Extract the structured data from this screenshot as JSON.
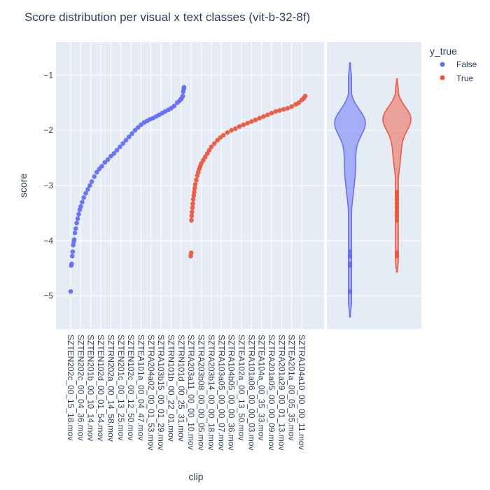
{
  "chart_data": [
    {
      "type": "scatter",
      "title": "Score distribution per visual x text classes (vit-b-32-8f)",
      "xlabel": "clip",
      "ylabel": "score",
      "ylim": [
        -5.6,
        -0.4
      ],
      "yticks": [
        -1,
        -2,
        -3,
        -4,
        -5
      ],
      "ytick_labels": [
        "−1",
        "−2",
        "−3",
        "−4",
        "−5"
      ],
      "x_categories": [
        "SZTEN202c_00_15_18.mov",
        "SZTEN202c_00_04_36.mov",
        "SZTEN201b_00_10_14.mov",
        "SZTEN102d_00_01_54.mov",
        "SZTRN202a_00_14_58.mov",
        "SZTEN201c_00_13_25.mov",
        "SZTEN102c_00_12_50.mov",
        "SZTEA101a_00_04_47.mov",
        "SZTRA204a02_00_01_53.mov",
        "SZTRA103b15_00_01_29.mov",
        "SZTRN101b_00_22_01.mov",
        "SZTRN101d_00_25_31.mov",
        "SZTRA203a11_00_00_10.mov",
        "SZTRA203b08_00_00_05.mov",
        "SZTRA203b14_00_00_18.mov",
        "SZTRA103a05_00_00_07.mov",
        "SZTRA104b05_00_00_36.mov",
        "SZTEA102a_00_13_50.mov",
        "SZTRA101a06_00_00_03.mov",
        "SZTEA104a_00_35_33.mov",
        "SZTRA201a05_00_00_09.mov",
        "SZTRA201a29_00_01_13.mov",
        "SZTEA201a_00_05_35.mov",
        "SZTRA104a10_00_00_11.mov"
      ],
      "grid": true,
      "legend": {
        "title": "y_true",
        "position": "top-right",
        "entries": [
          {
            "label": "False",
            "color": "#636efa"
          },
          {
            "label": "True",
            "color": "#ef553b"
          }
        ]
      },
      "series": [
        {
          "name": "False",
          "color": "#636efa",
          "category_range": [
            0,
            11
          ],
          "points": [
            [
              0.0,
              -4.92
            ],
            [
              0.05,
              -4.45
            ],
            [
              0.1,
              -4.42
            ],
            [
              0.15,
              -4.28
            ],
            [
              0.2,
              -4.2
            ],
            [
              0.25,
              -4.08
            ],
            [
              0.3,
              -4.02
            ],
            [
              0.35,
              -3.98
            ],
            [
              0.42,
              -3.86
            ],
            [
              0.5,
              -3.78
            ],
            [
              0.6,
              -3.68
            ],
            [
              0.7,
              -3.6
            ],
            [
              0.8,
              -3.52
            ],
            [
              0.9,
              -3.44
            ],
            [
              1.0,
              -3.38
            ],
            [
              1.15,
              -3.3
            ],
            [
              1.3,
              -3.22
            ],
            [
              1.5,
              -3.14
            ],
            [
              1.7,
              -3.07
            ],
            [
              1.9,
              -3.0
            ],
            [
              2.1,
              -2.93
            ],
            [
              2.35,
              -2.84
            ],
            [
              2.6,
              -2.76
            ],
            [
              2.85,
              -2.7
            ],
            [
              3.1,
              -2.65
            ],
            [
              3.4,
              -2.58
            ],
            [
              3.7,
              -2.53
            ],
            [
              4.0,
              -2.47
            ],
            [
              4.3,
              -2.42
            ],
            [
              4.6,
              -2.36
            ],
            [
              4.9,
              -2.3
            ],
            [
              5.2,
              -2.24
            ],
            [
              5.5,
              -2.18
            ],
            [
              5.8,
              -2.12
            ],
            [
              6.1,
              -2.06
            ],
            [
              6.4,
              -2.0
            ],
            [
              6.7,
              -1.95
            ],
            [
              7.0,
              -1.9
            ],
            [
              7.3,
              -1.86
            ],
            [
              7.6,
              -1.83
            ],
            [
              7.9,
              -1.8
            ],
            [
              8.2,
              -1.78
            ],
            [
              8.5,
              -1.75
            ],
            [
              8.8,
              -1.72
            ],
            [
              9.1,
              -1.69
            ],
            [
              9.4,
              -1.66
            ],
            [
              9.7,
              -1.63
            ],
            [
              10.0,
              -1.6
            ],
            [
              10.3,
              -1.56
            ],
            [
              10.6,
              -1.5
            ],
            [
              10.8,
              -1.47
            ],
            [
              10.95,
              -1.44
            ],
            [
              11.05,
              -1.42
            ],
            [
              11.15,
              -1.38
            ],
            [
              11.2,
              -1.3
            ],
            [
              11.25,
              -1.25
            ],
            [
              11.28,
              -1.22
            ]
          ]
        },
        {
          "name": "True",
          "color": "#ef553b",
          "category_range": [
            12,
            23
          ],
          "points": [
            [
              11.95,
              -4.28
            ],
            [
              12.0,
              -4.22
            ],
            [
              12.02,
              -3.63
            ],
            [
              12.05,
              -3.55
            ],
            [
              12.08,
              -3.48
            ],
            [
              12.12,
              -3.4
            ],
            [
              12.16,
              -3.33
            ],
            [
              12.2,
              -3.25
            ],
            [
              12.25,
              -3.18
            ],
            [
              12.3,
              -3.12
            ],
            [
              12.35,
              -3.05
            ],
            [
              12.4,
              -2.98
            ],
            [
              12.5,
              -2.9
            ],
            [
              12.6,
              -2.82
            ],
            [
              12.7,
              -2.76
            ],
            [
              12.8,
              -2.7
            ],
            [
              12.9,
              -2.65
            ],
            [
              13.0,
              -2.6
            ],
            [
              13.2,
              -2.54
            ],
            [
              13.4,
              -2.48
            ],
            [
              13.6,
              -2.42
            ],
            [
              13.8,
              -2.36
            ],
            [
              14.0,
              -2.3
            ],
            [
              14.3,
              -2.24
            ],
            [
              14.6,
              -2.18
            ],
            [
              14.9,
              -2.13
            ],
            [
              15.2,
              -2.09
            ],
            [
              15.6,
              -2.04
            ],
            [
              16.0,
              -2.0
            ],
            [
              16.4,
              -1.97
            ],
            [
              16.8,
              -1.93
            ],
            [
              17.2,
              -1.9
            ],
            [
              17.6,
              -1.87
            ],
            [
              18.0,
              -1.84
            ],
            [
              18.4,
              -1.81
            ],
            [
              18.8,
              -1.78
            ],
            [
              19.2,
              -1.75
            ],
            [
              19.6,
              -1.72
            ],
            [
              20.0,
              -1.69
            ],
            [
              20.4,
              -1.66
            ],
            [
              20.8,
              -1.64
            ],
            [
              21.2,
              -1.62
            ],
            [
              21.6,
              -1.6
            ],
            [
              22.0,
              -1.57
            ],
            [
              22.4,
              -1.53
            ],
            [
              22.7,
              -1.5
            ],
            [
              23.0,
              -1.45
            ],
            [
              23.2,
              -1.42
            ],
            [
              23.35,
              -1.38
            ]
          ]
        }
      ]
    },
    {
      "type": "violin",
      "ylim": [
        -5.6,
        -0.4
      ],
      "series": [
        {
          "name": "False",
          "color": "#636efa",
          "min": -5.38,
          "max": -0.78,
          "outliers": [
            -4.92,
            -4.45,
            -4.42,
            -4.28,
            -4.2
          ]
        },
        {
          "name": "True",
          "color": "#ef553b",
          "min": -4.57,
          "max": -1.07,
          "outliers": [
            -4.28,
            -4.22,
            -3.63,
            -3.55,
            -3.48,
            -3.4,
            -3.33,
            -3.25,
            -3.18,
            -3.12
          ]
        }
      ]
    }
  ]
}
